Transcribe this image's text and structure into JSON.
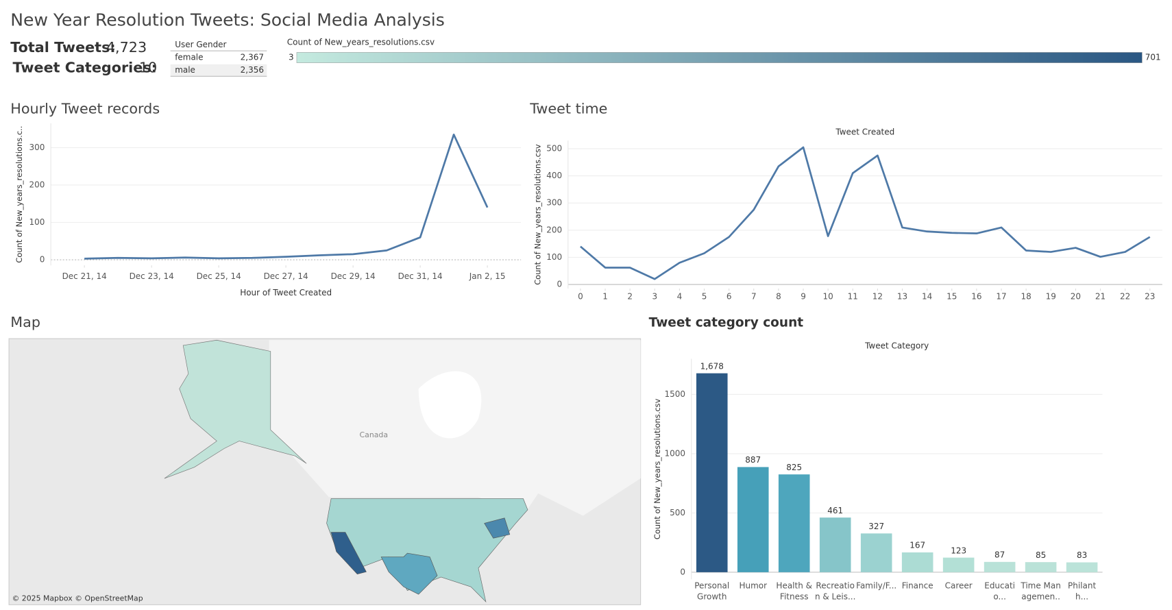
{
  "header": {
    "title": "New Year Resolution Tweets: Social Media Analysis"
  },
  "kpis": {
    "total_label": "Total Tweets:",
    "total_value": "4,723",
    "categories_label": "Tweet Categories:",
    "categories_value": "10"
  },
  "gender_table": {
    "header": "User Gender",
    "rows": [
      [
        "female",
        "2,367"
      ],
      [
        "male",
        "2,356"
      ]
    ]
  },
  "color_legend": {
    "title": "Count of New_years_resolutions.csv",
    "min": 3,
    "max": 701,
    "colors": [
      "#c4eadf",
      "#2a5783"
    ]
  },
  "map": {
    "title": "Map",
    "label": "Canada",
    "attribution": "© 2025 Mapbox © OpenStreetMap"
  },
  "chart_data": [
    {
      "type": "line",
      "title": "Hourly Tweet records",
      "x_label": "Hour of Tweet Created",
      "y_label": "Count of New_years_resolutions.c..",
      "x": [
        "2014-12-21",
        "2014-12-22",
        "2014-12-23",
        "2014-12-24",
        "2014-12-25",
        "2014-12-26",
        "2014-12-27",
        "2014-12-28",
        "2014-12-29",
        "2014-12-30",
        "2014-12-31",
        "2015-01-01",
        "2015-01-02"
      ],
      "values": [
        3,
        5,
        4,
        6,
        4,
        5,
        8,
        12,
        15,
        25,
        60,
        335,
        140
      ],
      "color": "#4e79a7",
      "xlim": [
        "2014-12-20",
        "2015-01-03"
      ],
      "xticks": [
        {
          "value": "2014-12-21",
          "label": "Dec 21, 14"
        },
        {
          "value": "2014-12-23",
          "label": "Dec 23, 14"
        },
        {
          "value": "2014-12-25",
          "label": "Dec 25, 14"
        },
        {
          "value": "2014-12-27",
          "label": "Dec 27, 14"
        },
        {
          "value": "2014-12-29",
          "label": "Dec 29, 14"
        },
        {
          "value": "2014-12-31",
          "label": "Dec 31, 14"
        },
        {
          "value": "2015-01-02",
          "label": "Jan 2, 15"
        }
      ],
      "ylim": [
        -15,
        365
      ],
      "yticks": [
        0,
        100,
        200,
        300
      ],
      "grid": true
    },
    {
      "type": "line",
      "title": "Tweet time",
      "x_label": "Tweet Created",
      "y_label": "Count of New_years_resolutions.csv",
      "x": [
        0,
        1,
        2,
        3,
        4,
        5,
        6,
        7,
        8,
        9,
        10,
        11,
        12,
        13,
        14,
        15,
        16,
        17,
        18,
        19,
        20,
        21,
        22,
        23
      ],
      "values": [
        140,
        62,
        62,
        20,
        80,
        115,
        175,
        275,
        435,
        505,
        178,
        410,
        475,
        210,
        195,
        190,
        188,
        210,
        125,
        120,
        135,
        102,
        120,
        175
      ],
      "color": "#4e79a7",
      "xlim": [
        -0.5,
        23.5
      ],
      "xticks": [
        0,
        1,
        2,
        3,
        4,
        5,
        6,
        7,
        8,
        9,
        10,
        11,
        12,
        13,
        14,
        15,
        16,
        17,
        18,
        19,
        20,
        21,
        22,
        23
      ],
      "ylim": [
        -15,
        530
      ],
      "yticks": [
        0,
        100,
        200,
        300,
        400,
        500
      ],
      "grid": true
    },
    {
      "type": "bar",
      "title": "Tweet category count",
      "x_label": "Tweet Category",
      "y_label": "Count of New_years_resolutions.csv",
      "categories": [
        "Personal Growth",
        "Humor",
        "Health & Fitness",
        "Recreation & Leis...",
        "Family/F...",
        "Finance",
        "Career",
        "Educatio...",
        "Time Managemen..",
        "Philanth..."
      ],
      "values": [
        1678,
        887,
        825,
        461,
        327,
        167,
        123,
        87,
        85,
        83
      ],
      "value_labels": [
        "1,678",
        "887",
        "825",
        "461",
        "327",
        "167",
        "123",
        "87",
        "85",
        "83"
      ],
      "colors": [
        "#2c5985",
        "#46a0b9",
        "#4ea6bd",
        "#86c5c9",
        "#9bd2d0",
        "#acdcd4",
        "#b3e0d6",
        "#b9e2d8",
        "#bae2d8",
        "#bbe3d9"
      ],
      "ylim": [
        -60,
        1800
      ],
      "yticks": [
        0,
        500,
        1000,
        1500
      ],
      "grid": true
    }
  ]
}
